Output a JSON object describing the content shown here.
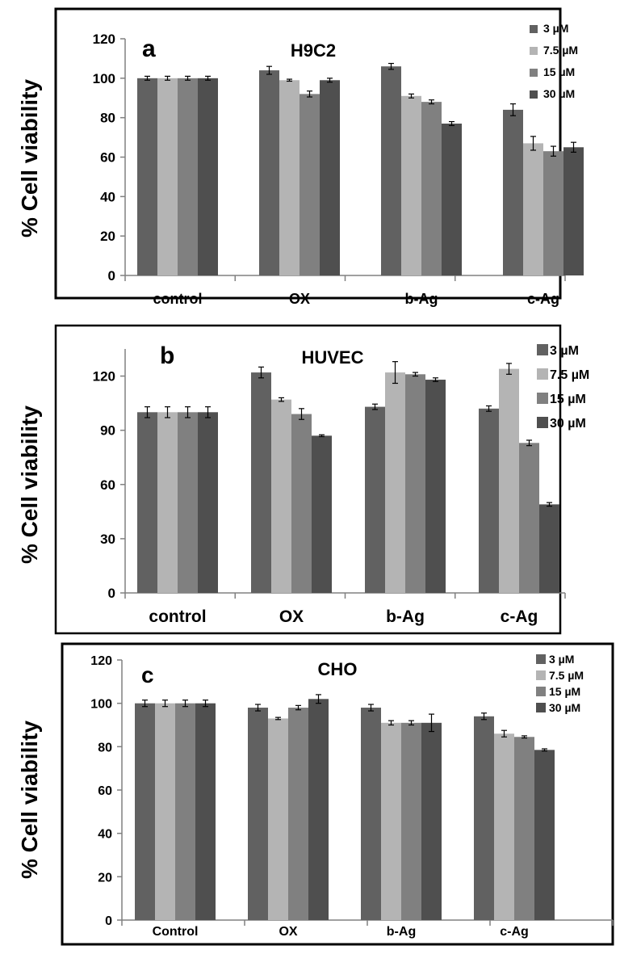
{
  "chart_data": [
    {
      "type": "bar",
      "panel_letter": "a",
      "title": "H9C2",
      "ylabel": "% Cell viability",
      "xlabel": "",
      "ylim": [
        0,
        120
      ],
      "yticks": [
        "0",
        "20",
        "40",
        "60",
        "80",
        "100",
        "120"
      ],
      "categories": [
        "control",
        "OX",
        "b-Ag",
        "c-Ag"
      ],
      "series": [
        {
          "name": "3 µM",
          "values": [
            100,
            104,
            106,
            84
          ],
          "errors": [
            1,
            2,
            1.5,
            3
          ]
        },
        {
          "name": "7.5 µM",
          "values": [
            100,
            99,
            91,
            67
          ],
          "errors": [
            1,
            0.5,
            1,
            3.5
          ]
        },
        {
          "name": "15 µM",
          "values": [
            100,
            92,
            88,
            63
          ],
          "errors": [
            1,
            1.5,
            1,
            2.5
          ]
        },
        {
          "name": "30 µM",
          "values": [
            100,
            99,
            77,
            65
          ],
          "errors": [
            1,
            1,
            1,
            2.5
          ]
        }
      ],
      "legend_position": "top-right"
    },
    {
      "type": "bar",
      "panel_letter": "b",
      "title": "HUVEC",
      "ylabel": "% Cell viability",
      "xlabel": "",
      "ylim": [
        0,
        135
      ],
      "yticks": [
        "0",
        "30",
        "60",
        "90",
        "120"
      ],
      "categories": [
        "control",
        "OX",
        "b-Ag",
        "c-Ag"
      ],
      "series": [
        {
          "name": "3 µM",
          "values": [
            100,
            122,
            103,
            102
          ],
          "errors": [
            3,
            3,
            1.5,
            1.5
          ]
        },
        {
          "name": "7.5 µM",
          "values": [
            100,
            107,
            122,
            124
          ],
          "errors": [
            3,
            1,
            6,
            3
          ]
        },
        {
          "name": "15 µM",
          "values": [
            100,
            99,
            121,
            83
          ],
          "errors": [
            3,
            3,
            1,
            1.5
          ]
        },
        {
          "name": "30 µM",
          "values": [
            100,
            87,
            118,
            49
          ],
          "errors": [
            3,
            0.5,
            1,
            1
          ]
        }
      ],
      "legend_position": "top-right"
    },
    {
      "type": "bar",
      "panel_letter": "c",
      "title": "CHO",
      "ylabel": "% Cell viability",
      "xlabel": "",
      "ylim": [
        0,
        120
      ],
      "yticks": [
        "0",
        "20",
        "40",
        "60",
        "80",
        "100",
        "120"
      ],
      "categories": [
        "Control",
        "OX",
        "b-Ag",
        "c-Ag"
      ],
      "series": [
        {
          "name": "3 µM",
          "values": [
            100,
            98,
            98,
            94
          ],
          "errors": [
            1.5,
            1.5,
            1.5,
            1.5
          ]
        },
        {
          "name": "7.5 µM",
          "values": [
            100,
            93,
            91,
            86
          ],
          "errors": [
            1.5,
            0.5,
            1,
            1.5
          ]
        },
        {
          "name": "15 µM",
          "values": [
            100,
            98,
            91,
            84.5
          ],
          "errors": [
            1.5,
            1,
            1,
            0.5
          ]
        },
        {
          "name": "30 µM",
          "values": [
            100,
            102,
            91,
            78.5
          ],
          "errors": [
            1.5,
            2,
            4,
            0.5
          ]
        }
      ],
      "legend_position": "top-right"
    }
  ],
  "colors": {
    "series": [
      "#616161",
      "#b4b4b4",
      "#808080",
      "#4f4f4f"
    ],
    "frame": "#000000",
    "axis": "#808080",
    "background": "#ffffff"
  }
}
